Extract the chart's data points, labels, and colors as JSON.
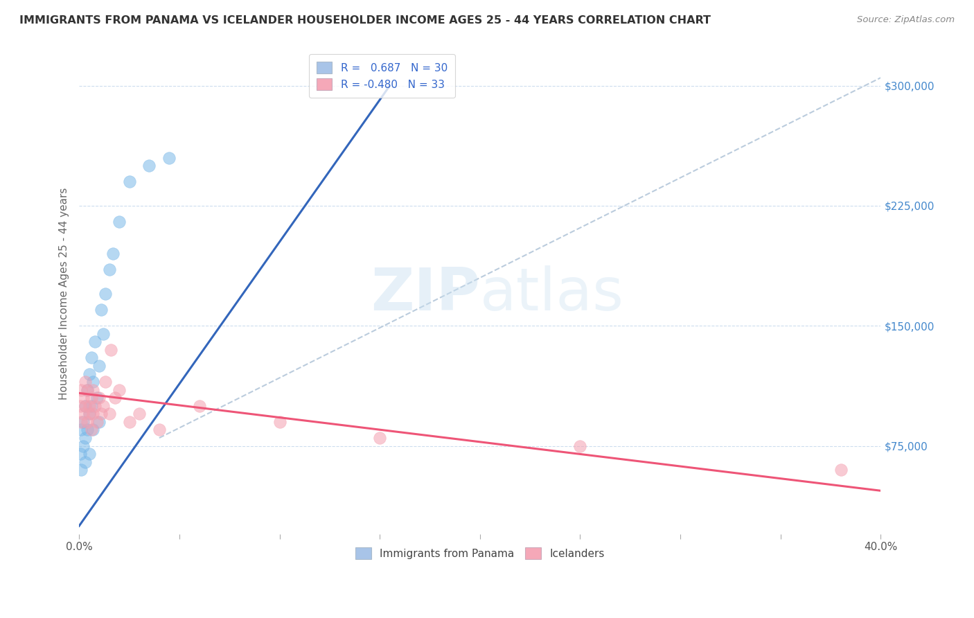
{
  "title": "IMMIGRANTS FROM PANAMA VS ICELANDER HOUSEHOLDER INCOME AGES 25 - 44 YEARS CORRELATION CHART",
  "source": "Source: ZipAtlas.com",
  "ylabel": "Householder Income Ages 25 - 44 years",
  "xlim": [
    0.0,
    0.4
  ],
  "ylim": [
    20000,
    320000
  ],
  "yticks": [
    75000,
    150000,
    225000,
    300000
  ],
  "ytick_labels": [
    "$75,000",
    "$150,000",
    "$225,000",
    "$300,000"
  ],
  "xtick_left_label": "0.0%",
  "xtick_right_label": "40.0%",
  "legend_color1": "#a8c4e8",
  "legend_color2": "#f5a8b8",
  "color_blue": "#7ab8e8",
  "color_pink": "#f4a0b0",
  "line_color_blue": "#3366bb",
  "line_color_pink": "#ee5577",
  "line_color_dashed": "#bbccdd",
  "background_color": "#ffffff",
  "panama_scatter_x": [
    0.0005,
    0.001,
    0.001,
    0.002,
    0.002,
    0.003,
    0.003,
    0.003,
    0.004,
    0.004,
    0.005,
    0.005,
    0.005,
    0.006,
    0.006,
    0.007,
    0.007,
    0.008,
    0.009,
    0.01,
    0.01,
    0.011,
    0.012,
    0.013,
    0.015,
    0.017,
    0.02,
    0.025,
    0.035,
    0.045
  ],
  "panama_scatter_y": [
    70000,
    85000,
    60000,
    90000,
    75000,
    100000,
    80000,
    65000,
    110000,
    85000,
    95000,
    70000,
    120000,
    100000,
    130000,
    115000,
    85000,
    140000,
    105000,
    125000,
    90000,
    160000,
    145000,
    170000,
    185000,
    195000,
    215000,
    240000,
    250000,
    255000
  ],
  "icelander_scatter_x": [
    0.0005,
    0.001,
    0.001,
    0.002,
    0.002,
    0.003,
    0.003,
    0.004,
    0.004,
    0.005,
    0.005,
    0.006,
    0.006,
    0.007,
    0.007,
    0.008,
    0.009,
    0.01,
    0.011,
    0.012,
    0.013,
    0.015,
    0.016,
    0.018,
    0.02,
    0.025,
    0.03,
    0.04,
    0.06,
    0.1,
    0.15,
    0.25,
    0.38
  ],
  "icelander_scatter_y": [
    100000,
    110000,
    90000,
    105000,
    95000,
    115000,
    100000,
    110000,
    90000,
    100000,
    95000,
    105000,
    85000,
    110000,
    95000,
    100000,
    90000,
    105000,
    95000,
    100000,
    115000,
    95000,
    135000,
    105000,
    110000,
    90000,
    95000,
    85000,
    100000,
    90000,
    80000,
    75000,
    60000
  ],
  "blue_line_x0": 0.0,
  "blue_line_x1": 0.155,
  "blue_line_y0": 25000,
  "blue_line_y1": 300000,
  "pink_line_x0": 0.0,
  "pink_line_x1": 0.4,
  "pink_line_y0": 108000,
  "pink_line_y1": 47000,
  "dash_line_x0": 0.04,
  "dash_line_x1": 0.4,
  "dash_line_y0": 80000,
  "dash_line_y1": 305000
}
